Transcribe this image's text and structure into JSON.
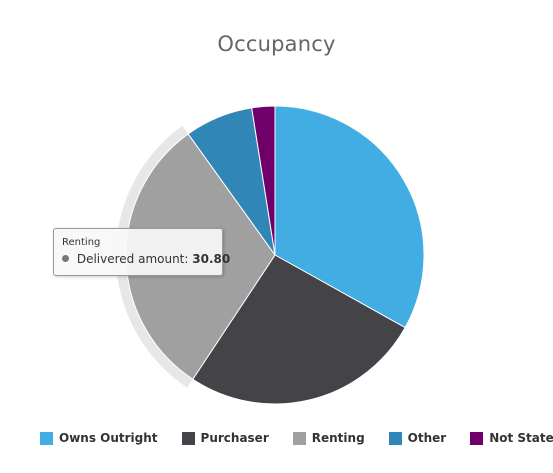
{
  "chart_data": {
    "type": "pie",
    "title": "Occupancy",
    "slices": [
      {
        "name": "Owns Outright",
        "value": 33.1,
        "color": "#41ADE2"
      },
      {
        "name": "Purchaser",
        "value": 26.2,
        "color": "#434348"
      },
      {
        "name": "Renting",
        "value": 30.8,
        "color": "#A0A0A0"
      },
      {
        "name": "Other",
        "value": 7.4,
        "color": "#2F86B7"
      },
      {
        "name": "Not Stated",
        "value": 2.5,
        "color": "#6F0069"
      }
    ],
    "legend_position": "bottom",
    "hovered_slice": "Renting"
  },
  "tooltip": {
    "header": "Renting",
    "series_label": "Delivered amount:",
    "value": "30.80",
    "dot_color": "#777777"
  }
}
